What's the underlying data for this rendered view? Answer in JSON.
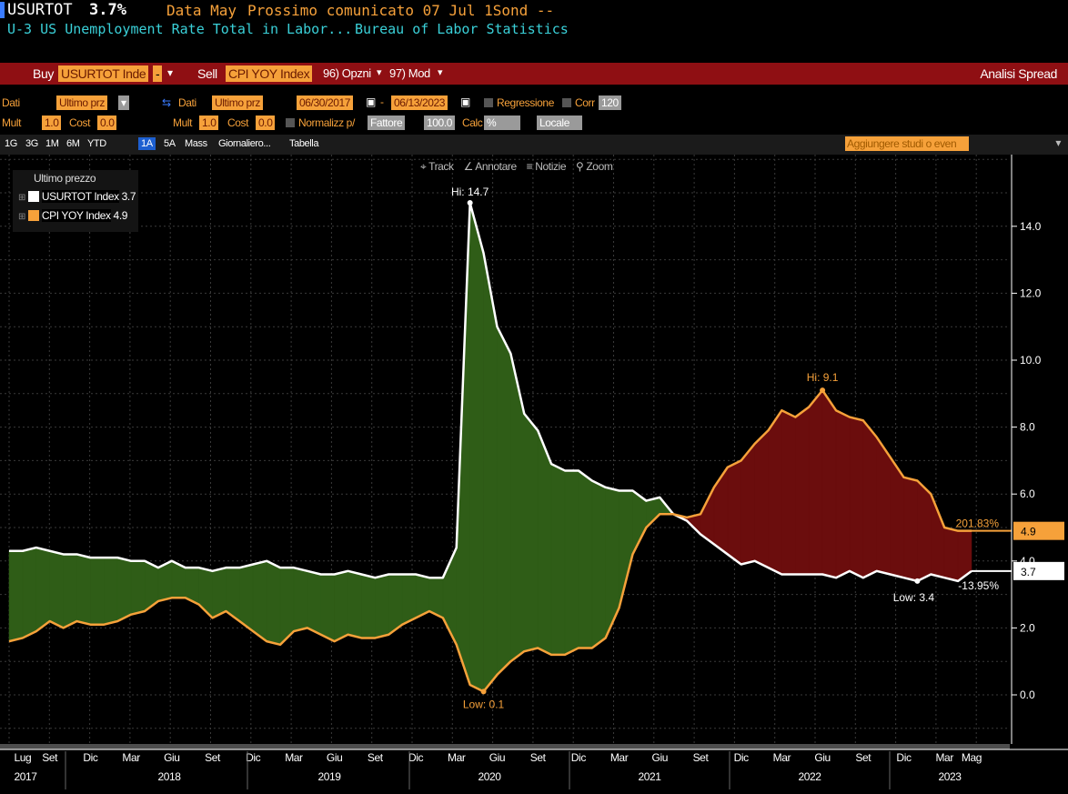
{
  "header": {
    "ticker": "USURTOT",
    "value": "3.7%",
    "data_label": "Data May",
    "next_release": "Prossimo comunicato 07 Jul 1Sond --",
    "description": "U-3 US Unemployment Rate Total in Labor...",
    "source": "Bureau of Labor Statistics"
  },
  "spread_bar": {
    "buy_label": "Buy",
    "buy_field": "USURTOT Inde",
    "dash": "-",
    "sell_label": "Sell",
    "sell_field": "CPI YOY Index",
    "options_label": "96) Opzni",
    "mod_label": "97) Mod",
    "title": "Analisi Spread"
  },
  "controls": {
    "dati_label": "Dati",
    "dati_field": "Ultimo prz",
    "dati2_label": "Dati",
    "dati2_field": "Ultimo prz",
    "start_date": "06/30/2017",
    "end_date": "06/13/2023",
    "regression_label": "Regressione",
    "corr_label": "Corr",
    "corr_value": "120",
    "mult_label": "Mult",
    "mult_value": "1.0",
    "cost_label": "Cost",
    "cost_value": "0.0",
    "mult2_label": "Mult",
    "mult2_value": "1.0",
    "cost2_label": "Cost",
    "cost2_value": "0.0",
    "normalize_label": "Normalizz p/",
    "normalize_field": "Fattore",
    "normalize_value": "100.0",
    "calc_label": "Calc",
    "calc_field": "%",
    "locale_field": "Locale"
  },
  "tabs": [
    "1G",
    "3G",
    "1M",
    "6M",
    "YTD",
    "1A",
    "5A",
    "Mass",
    "Giornaliero...",
    "Tabella"
  ],
  "active_tab": "1A",
  "studies_placeholder": "Aggiungere studi o even",
  "toolbar": {
    "track": "Track",
    "annotate": "Annotare",
    "news": "Notizie",
    "zoom": "Zoom"
  },
  "legend": {
    "title": "Ultimo prezzo",
    "items": [
      {
        "name": "USURTOT Index",
        "value": "3.7",
        "color": "#ffffff"
      },
      {
        "name": "CPI YOY Index",
        "value": "4.9",
        "color": "#f6a13a"
      }
    ]
  },
  "chart_data": {
    "type": "line",
    "x": [
      "2017-06",
      "2017-07",
      "2017-08",
      "2017-09",
      "2017-10",
      "2017-11",
      "2017-12",
      "2018-01",
      "2018-02",
      "2018-03",
      "2018-04",
      "2018-05",
      "2018-06",
      "2018-07",
      "2018-08",
      "2018-09",
      "2018-10",
      "2018-11",
      "2018-12",
      "2019-01",
      "2019-02",
      "2019-03",
      "2019-04",
      "2019-05",
      "2019-06",
      "2019-07",
      "2019-08",
      "2019-09",
      "2019-10",
      "2019-11",
      "2019-12",
      "2020-01",
      "2020-02",
      "2020-03",
      "2020-04",
      "2020-05",
      "2020-06",
      "2020-07",
      "2020-08",
      "2020-09",
      "2020-10",
      "2020-11",
      "2020-12",
      "2021-01",
      "2021-02",
      "2021-03",
      "2021-04",
      "2021-05",
      "2021-06",
      "2021-07",
      "2021-08",
      "2021-09",
      "2021-10",
      "2021-11",
      "2021-12",
      "2022-01",
      "2022-02",
      "2022-03",
      "2022-04",
      "2022-05",
      "2022-06",
      "2022-07",
      "2022-08",
      "2022-09",
      "2022-10",
      "2022-11",
      "2022-12",
      "2023-01",
      "2023-02",
      "2023-03",
      "2023-04",
      "2023-05"
    ],
    "series": [
      {
        "name": "USURTOT Index",
        "color": "#ffffff",
        "values": [
          4.3,
          4.3,
          4.4,
          4.3,
          4.2,
          4.2,
          4.1,
          4.1,
          4.1,
          4.0,
          4.0,
          3.8,
          4.0,
          3.8,
          3.8,
          3.7,
          3.8,
          3.8,
          3.9,
          4.0,
          3.8,
          3.8,
          3.7,
          3.6,
          3.6,
          3.7,
          3.6,
          3.5,
          3.6,
          3.6,
          3.6,
          3.5,
          3.5,
          4.4,
          14.7,
          13.2,
          11.0,
          10.2,
          8.4,
          7.9,
          6.9,
          6.7,
          6.7,
          6.4,
          6.2,
          6.1,
          6.1,
          5.8,
          5.9,
          5.4,
          5.2,
          4.8,
          4.5,
          4.2,
          3.9,
          4.0,
          3.8,
          3.6,
          3.6,
          3.6,
          3.6,
          3.5,
          3.7,
          3.5,
          3.7,
          3.6,
          3.5,
          3.4,
          3.6,
          3.5,
          3.4,
          3.7
        ]
      },
      {
        "name": "CPI YOY Index",
        "color": "#f6a13a",
        "values": [
          1.6,
          1.7,
          1.9,
          2.2,
          2.0,
          2.2,
          2.1,
          2.1,
          2.2,
          2.4,
          2.5,
          2.8,
          2.9,
          2.9,
          2.7,
          2.3,
          2.5,
          2.2,
          1.9,
          1.6,
          1.5,
          1.9,
          2.0,
          1.8,
          1.6,
          1.8,
          1.7,
          1.7,
          1.8,
          2.1,
          2.3,
          2.5,
          2.3,
          1.5,
          0.3,
          0.1,
          0.6,
          1.0,
          1.3,
          1.4,
          1.2,
          1.2,
          1.4,
          1.4,
          1.7,
          2.6,
          4.2,
          5.0,
          5.4,
          5.4,
          5.3,
          5.4,
          6.2,
          6.8,
          7.0,
          7.5,
          7.9,
          8.5,
          8.3,
          8.6,
          9.1,
          8.5,
          8.3,
          8.2,
          7.7,
          7.1,
          6.5,
          6.4,
          6.0,
          5.0,
          4.9,
          4.9
        ]
      }
    ],
    "ylim": [
      -1.5,
      16
    ],
    "y_ticks": [
      "0.0",
      "2.0",
      "4.0",
      "6.0",
      "8.0",
      "10.0",
      "12.0",
      "14.0"
    ],
    "annotations": {
      "hi_unemp": "Hi: 14.7",
      "low_cpi": "Low: 0.1",
      "hi_cpi": "Hi: 9.1",
      "low_unemp": "Low: 3.4",
      "spread_up": "201.83%",
      "spread_down": "-13.95%",
      "last_cpi": "4.9",
      "last_unemp": "3.7"
    },
    "month_ticks": [
      "Lug",
      "Set",
      "Dic",
      "Mar",
      "Giu",
      "Set",
      "Dic",
      "Mar",
      "Giu",
      "Set",
      "Dic",
      "Mar",
      "Giu",
      "Set",
      "Dic",
      "Mar",
      "Giu",
      "Set",
      "Dic",
      "Mar",
      "Giu",
      "Set",
      "Dic",
      "Mar",
      "Mag"
    ],
    "year_ticks": [
      "2017",
      "2018",
      "2019",
      "2020",
      "2021",
      "2022",
      "2023"
    ],
    "fill_colors": {
      "green": "#2f5d17",
      "red": "#6b0d0d"
    }
  }
}
